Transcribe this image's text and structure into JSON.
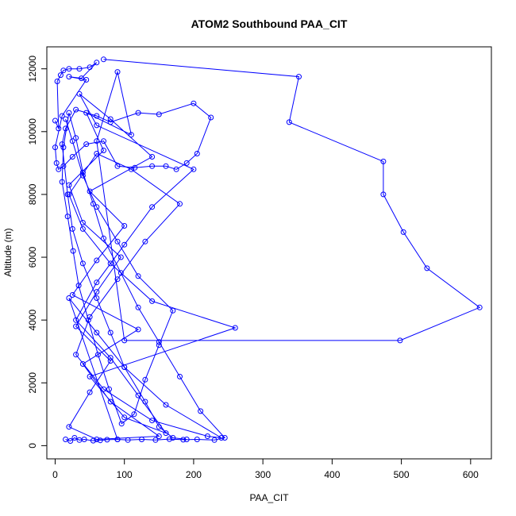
{
  "chart_data": {
    "type": "line",
    "title": "ATOM2 Southbound PAA_CIT",
    "xlabel": "PAA_CIT",
    "ylabel": "Altitude (m)",
    "xlim": [
      -12,
      630
    ],
    "ylim": [
      -420,
      12700
    ],
    "xticks": [
      0,
      100,
      200,
      300,
      400,
      500,
      600
    ],
    "yticks": [
      0,
      2000,
      4000,
      6000,
      8000,
      10000,
      12000
    ],
    "marker": "open-circle",
    "line_color": "#0000ff",
    "grid": false,
    "legend": "none",
    "series": [
      {
        "x": [
          70,
          352,
          338,
          474,
          474,
          503,
          537,
          613,
          498,
          100,
          60,
          90,
          110,
          45,
          70,
          20,
          40,
          95,
          60,
          30,
          80,
          50,
          20,
          60,
          150,
          80,
          40,
          120,
          25,
          60,
          100,
          50,
          140,
          80,
          35,
          60,
          200,
          140,
          100,
          60,
          30,
          80,
          120,
          160,
          100,
          50,
          260,
          140,
          80,
          40,
          20,
          60,
          110,
          180,
          130,
          90,
          50,
          30,
          70,
          140,
          220,
          240,
          160,
          100,
          60,
          20,
          90
        ],
        "y": [
          12300,
          11750,
          10300,
          9050,
          8000,
          6800,
          5650,
          4400,
          3350,
          3350,
          9700,
          11900,
          9900,
          10600,
          9400,
          8300,
          7100,
          6000,
          4900,
          3800,
          2700,
          1700,
          600,
          200,
          300,
          1400,
          2600,
          3700,
          4800,
          5900,
          7000,
          8100,
          9200,
          10400,
          11200,
          10200,
          8800,
          7600,
          6400,
          5200,
          4000,
          2800,
          1600,
          400,
          900,
          2200,
          3750,
          4600,
          5800,
          6900,
          8000,
          9300,
          8800,
          7700,
          6500,
          5300,
          4100,
          2900,
          1800,
          800,
          300,
          250,
          1300,
          2500,
          3600,
          4700,
          200
        ]
      },
      {
        "x": [
          0,
          5,
          3,
          8,
          12,
          20,
          35,
          50,
          60,
          38,
          20,
          45,
          10,
          0,
          2,
          5,
          12,
          25,
          45,
          70,
          90,
          115,
          140,
          160,
          175,
          190,
          205,
          225,
          200,
          150,
          120,
          80,
          60,
          30,
          15,
          10,
          18,
          25,
          40,
          60,
          80,
          100,
          130,
          150,
          170,
          190
        ],
        "y": [
          10350,
          10100,
          11600,
          11800,
          11950,
          12000,
          12000,
          12050,
          12200,
          11700,
          11750,
          11650,
          10500,
          9500,
          9000,
          8800,
          8900,
          9200,
          9600,
          9700,
          8900,
          8850,
          8900,
          8900,
          8800,
          9000,
          9300,
          10450,
          10900,
          10550,
          10600,
          10300,
          10500,
          10700,
          10100,
          9600,
          8000,
          6900,
          5800,
          4700,
          3600,
          2500,
          1400,
          600,
          250,
          200
        ]
      },
      {
        "x": [
          15,
          22,
          28,
          35,
          42,
          55,
          65,
          75,
          90,
          105,
          125,
          145,
          165,
          185,
          205,
          230,
          245,
          210,
          180,
          150,
          120,
          95,
          70,
          55,
          40,
          30,
          20,
          12,
          10,
          18,
          26,
          34,
          48,
          62,
          78,
          96,
          114,
          130,
          150,
          170,
          120,
          90,
          60,
          40,
          25,
          15
        ],
        "y": [
          200,
          150,
          250,
          180,
          200,
          160,
          170,
          190,
          200,
          180,
          200,
          180,
          210,
          190,
          200,
          180,
          250,
          1100,
          2200,
          3300,
          4400,
          5500,
          6600,
          7700,
          8700,
          9800,
          10600,
          9500,
          8400,
          7300,
          6200,
          5100,
          4000,
          2900,
          1800,
          700,
          1000,
          2100,
          3200,
          4300,
          5400,
          6500,
          7600,
          8600,
          9700,
          10400
        ]
      }
    ]
  }
}
